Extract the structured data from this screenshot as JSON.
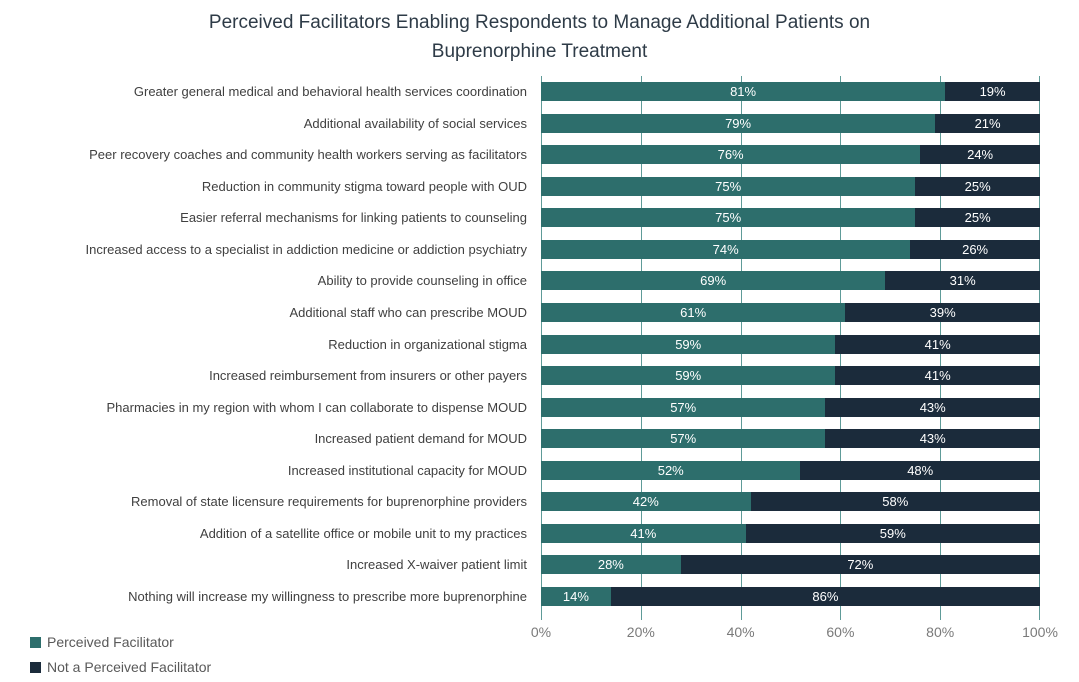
{
  "title": "Perceived Facilitators Enabling Respondents to Manage Additional Patients on Buprenorphine Treatment",
  "chart_data": {
    "type": "bar",
    "orientation": "horizontal",
    "stacked": true,
    "title": "Perceived Facilitators Enabling Respondents to Manage Additional Patients on Buprenorphine Treatment",
    "categories": [
      "Greater general medical and behavioral health services coordination",
      "Additional availability of social services",
      "Peer recovery coaches and community health workers serving as facilitators",
      "Reduction in community stigma toward people with OUD",
      "Easier referral mechanisms for linking patients to counseling",
      "Increased access to a specialist in addiction medicine or addiction psychiatry",
      "Ability to provide counseling in office",
      "Additional staff who can prescribe MOUD",
      "Reduction in organizational stigma",
      "Increased reimbursement from insurers or other payers",
      "Pharmacies in my region with whom I can collaborate to dispense MOUD",
      "Increased patient demand for MOUD",
      "Increased institutional capacity for MOUD",
      "Removal of state licensure requirements for buprenorphine providers",
      "Addition of a satellite office or mobile unit to my practices",
      "Increased X-waiver patient limit",
      "Nothing will increase my willingness to prescribe more buprenorphine"
    ],
    "series": [
      {
        "name": "Perceived Facilitator",
        "color": "#2D6E6C",
        "values": [
          81,
          79,
          76,
          75,
          75,
          74,
          69,
          61,
          59,
          59,
          57,
          57,
          52,
          42,
          41,
          28,
          14
        ]
      },
      {
        "name": "Not a Perceived Facilitator",
        "color": "#1B2B3B",
        "values": [
          19,
          21,
          24,
          25,
          25,
          26,
          31,
          39,
          41,
          41,
          43,
          43,
          48,
          58,
          59,
          72,
          86
        ]
      }
    ],
    "bar_label_format": "{value}%",
    "bar_label_color": "#ffffff",
    "x_ticks": [
      "0%",
      "20%",
      "40%",
      "60%",
      "80%",
      "100%"
    ],
    "xlim": [
      0,
      100
    ],
    "grid": "vertical",
    "gridline_color": "#5E9B98",
    "legend_position": "bottom-left"
  }
}
